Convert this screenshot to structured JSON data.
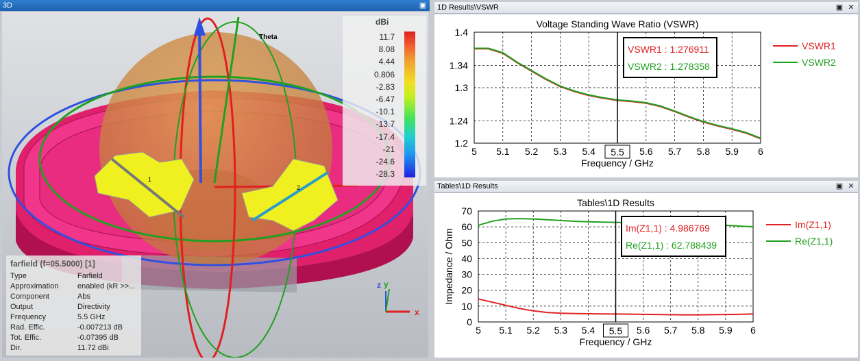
{
  "window3d": {
    "title": "3D"
  },
  "farfield_legend": {
    "unit": "dBi",
    "ticks": [
      "11.7",
      "8.08",
      "4.44",
      "0.806",
      "-2.83",
      "-6.47",
      "-10.1",
      "-13.7",
      "-17.4",
      "-21",
      "-24.6",
      "-28.3"
    ],
    "axis_label": "Theta",
    "port1": "1",
    "port2": "2"
  },
  "axes": {
    "z": "z",
    "y": "y",
    "x": "x"
  },
  "farfield_info": {
    "heading": "farfield (f=05.5000) [1]",
    "rows": [
      {
        "label": "Type",
        "value": "Farfield"
      },
      {
        "label": "Approximation",
        "value": "enabled (kR >>..."
      },
      {
        "label": "Component",
        "value": "Abs"
      },
      {
        "label": "Output",
        "value": "Directivity"
      },
      {
        "label": "Frequency",
        "value": "5.5 GHz"
      },
      {
        "label": "Rad. Effic.",
        "value": "-0.007213 dB"
      },
      {
        "label": "Tot. Effic.",
        "value": "-0.07395 dB"
      },
      {
        "label": "Dir.",
        "value": "11.72 dBi"
      }
    ]
  },
  "vswr_window": {
    "tab_title": "1D Results\\VSWR",
    "plot_title": "Voltage Standing Wave Ratio (VSWR)",
    "xlabel": "Frequency / GHz",
    "marker_label": "5.5",
    "readout": [
      {
        "text": "VSWR1 : 1.276911",
        "color": "#e02020"
      },
      {
        "text": "VSWR2 : 1.278358",
        "color": "#20a020"
      }
    ],
    "legend": [
      {
        "name": "VSWR1",
        "color": "#e02020"
      },
      {
        "name": "VSWR2",
        "color": "#20a020"
      }
    ]
  },
  "z_window": {
    "tab_title": "Tables\\1D Results",
    "plot_title": "Tables\\1D Results",
    "xlabel": "Frequency / GHz",
    "ylabel": "Impedance / Ohm",
    "marker_label": "5.5",
    "readout": [
      {
        "text": "Im(Z1,1) : 4.986769",
        "color": "#e02020"
      },
      {
        "text": "Re(Z1,1) : 62.788439",
        "color": "#20a020"
      }
    ],
    "legend": [
      {
        "name": "Im(Z1,1)",
        "color": "#e02020"
      },
      {
        "name": "Re(Z1,1)",
        "color": "#20a020"
      }
    ]
  },
  "chart_data": [
    {
      "type": "line",
      "title": "Voltage Standing Wave Ratio (VSWR)",
      "xlabel": "Frequency / GHz",
      "ylabel": "",
      "xlim": [
        5,
        6
      ],
      "ylim": [
        1.2,
        1.4
      ],
      "xticks": [
        "5",
        "5.1",
        "5.2",
        "5.3",
        "5.4",
        "5.5",
        "5.6",
        "5.7",
        "5.8",
        "5.9",
        "6"
      ],
      "yticks": [
        "1.2",
        "1.24",
        "1.3",
        "1.34",
        "1.4"
      ],
      "ytick_values": [
        1.2,
        1.24,
        1.3,
        1.34,
        1.4
      ],
      "grid": true,
      "legend": "right",
      "marker_x": 5.5,
      "x": [
        5.0,
        5.05,
        5.1,
        5.15,
        5.2,
        5.25,
        5.3,
        5.35,
        5.4,
        5.45,
        5.5,
        5.55,
        5.6,
        5.65,
        5.7,
        5.75,
        5.8,
        5.85,
        5.9,
        5.95,
        6.0
      ],
      "series": [
        {
          "name": "VSWR1",
          "color": "#e02020",
          "values": [
            1.37,
            1.37,
            1.362,
            1.345,
            1.33,
            1.315,
            1.302,
            1.293,
            1.286,
            1.281,
            1.277,
            1.275,
            1.272,
            1.266,
            1.257,
            1.247,
            1.238,
            1.231,
            1.225,
            1.218,
            1.208
          ]
        },
        {
          "name": "VSWR2",
          "color": "#20a020",
          "values": [
            1.371,
            1.371,
            1.363,
            1.346,
            1.331,
            1.316,
            1.303,
            1.294,
            1.287,
            1.282,
            1.278,
            1.276,
            1.273,
            1.267,
            1.258,
            1.248,
            1.239,
            1.232,
            1.226,
            1.219,
            1.209
          ]
        }
      ]
    },
    {
      "type": "line",
      "title": "Tables\\1D Results",
      "xlabel": "Frequency / GHz",
      "ylabel": "Impedance / Ohm",
      "xlim": [
        5,
        6
      ],
      "ylim": [
        0,
        70
      ],
      "xticks": [
        "5",
        "5.1",
        "5.2",
        "5.3",
        "5.4",
        "5.5",
        "5.6",
        "5.7",
        "5.8",
        "5.9",
        "6"
      ],
      "yticks": [
        "0",
        "10",
        "20",
        "30",
        "40",
        "50",
        "60",
        "70"
      ],
      "ytick_values": [
        0,
        10,
        20,
        30,
        40,
        50,
        60,
        70
      ],
      "grid": true,
      "legend": "right",
      "marker_x": 5.5,
      "x": [
        5.0,
        5.05,
        5.1,
        5.15,
        5.2,
        5.25,
        5.3,
        5.35,
        5.4,
        5.45,
        5.5,
        5.55,
        5.6,
        5.65,
        5.7,
        5.75,
        5.8,
        5.85,
        5.9,
        5.95,
        6.0
      ],
      "series": [
        {
          "name": "Im(Z1,1)",
          "color": "#e02020",
          "values": [
            14.5,
            12.5,
            10.5,
            8.5,
            7.0,
            6.0,
            5.5,
            5.3,
            5.2,
            5.1,
            5.0,
            4.9,
            4.8,
            4.7,
            4.6,
            4.5,
            4.5,
            4.6,
            4.7,
            4.8,
            5.0
          ]
        },
        {
          "name": "Re(Z1,1)",
          "color": "#20a020",
          "values": [
            61.0,
            63.5,
            65.0,
            65.2,
            65.0,
            64.5,
            64.0,
            63.5,
            63.2,
            63.0,
            62.8,
            62.6,
            62.5,
            62.4,
            62.3,
            62.2,
            62.0,
            61.5,
            61.0,
            60.5,
            60.0
          ]
        }
      ]
    }
  ]
}
